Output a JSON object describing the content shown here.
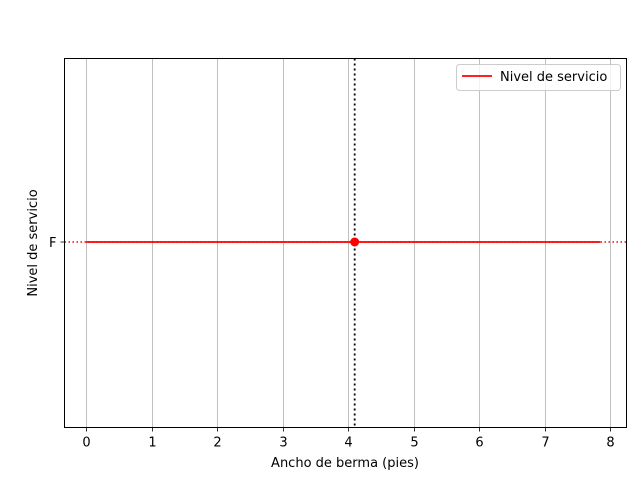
{
  "chart_data": {
    "type": "line",
    "xlabel": "Ancho de berma (pies)",
    "ylabel": "Nivel de servicio",
    "x_ticks": [
      0,
      1,
      2,
      3,
      4,
      5,
      6,
      7,
      8
    ],
    "y_ticks": [
      "F"
    ],
    "xlim": [
      -0.33,
      8.25
    ],
    "grid": "x-major",
    "legend_placement": "top-right",
    "series": [
      {
        "name": "Nivel de servicio",
        "color": "#ff0000",
        "x": [
          0,
          7.85
        ],
        "y": [
          "F",
          "F"
        ]
      }
    ],
    "reference_lines": {
      "horizontal_level": "F",
      "vertical_x": 4.1,
      "color": "#ff0000",
      "vertical_color": "#000000"
    },
    "marker": {
      "x": 4.1,
      "y": "F",
      "color": "#ff0000"
    }
  }
}
